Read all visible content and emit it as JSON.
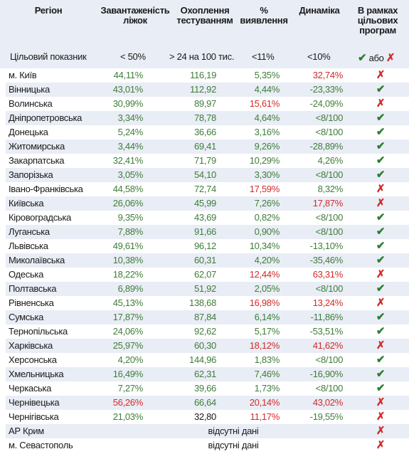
{
  "header": {
    "region": [
      "Регіон"
    ],
    "beds": [
      "Завантаженість",
      "ліжок"
    ],
    "testing": [
      "Охоплення",
      "тестуванням"
    ],
    "detection": [
      "%",
      "виявлення"
    ],
    "dynamics": [
      "Динаміка"
    ],
    "programs": [
      "В рамках",
      "цільових",
      "програм"
    ]
  },
  "targets": {
    "label": "Цільовий показник",
    "beds": "< 50%",
    "testing": "> 24 на 100 тис.",
    "detection": "<11%",
    "dynamics": "<10%",
    "legend_or": "або"
  },
  "colors": {
    "green": "#3f7d3a",
    "red": "#d22b2b",
    "band": "#e9edf5"
  },
  "rows": [
    {
      "region": "м. Київ",
      "beds": "44,11%",
      "bc": "g",
      "test": "116,19",
      "tc": "g",
      "det": "5,35%",
      "dc": "g",
      "dyn": "32,74%",
      "yc": "r",
      "ok": false
    },
    {
      "region": "Вінницька",
      "beds": "43,01%",
      "bc": "g",
      "test": "112,92",
      "tc": "g",
      "det": "4,44%",
      "dc": "g",
      "dyn": "-23,33%",
      "yc": "g",
      "ok": true
    },
    {
      "region": "Волинська",
      "beds": "30,99%",
      "bc": "g",
      "test": "89,97",
      "tc": "g",
      "det": "15,61%",
      "dc": "r",
      "dyn": "-24,09%",
      "yc": "g",
      "ok": false
    },
    {
      "region": "Дніпропетровська",
      "beds": "3,34%",
      "bc": "g",
      "test": "78,78",
      "tc": "g",
      "det": "4,64%",
      "dc": "g",
      "dyn": "<8/100",
      "yc": "g",
      "ok": true
    },
    {
      "region": "Донецька",
      "beds": "5,24%",
      "bc": "g",
      "test": "36,66",
      "tc": "g",
      "det": "3,16%",
      "dc": "g",
      "dyn": "<8/100",
      "yc": "g",
      "ok": true
    },
    {
      "region": "Житомирська",
      "beds": "3,44%",
      "bc": "g",
      "test": "69,41",
      "tc": "g",
      "det": "9,26%",
      "dc": "g",
      "dyn": "-28,89%",
      "yc": "g",
      "ok": true
    },
    {
      "region": "Закарпатська",
      "beds": "32,41%",
      "bc": "g",
      "test": "71,79",
      "tc": "g",
      "det": "10,29%",
      "dc": "g",
      "dyn": "4,26%",
      "yc": "g",
      "ok": true
    },
    {
      "region": "Запорізька",
      "beds": "3,05%",
      "bc": "g",
      "test": "54,10",
      "tc": "g",
      "det": "3,30%",
      "dc": "g",
      "dyn": "<8/100",
      "yc": "g",
      "ok": true
    },
    {
      "region": "Івано-Франківська",
      "beds": "44,58%",
      "bc": "g",
      "test": "72,74",
      "tc": "g",
      "det": "17,59%",
      "dc": "r",
      "dyn": "8,32%",
      "yc": "g",
      "ok": false
    },
    {
      "region": "Київська",
      "beds": "26,06%",
      "bc": "g",
      "test": "45,99",
      "tc": "g",
      "det": "7,26%",
      "dc": "g",
      "dyn": "17,87%",
      "yc": "r",
      "ok": false
    },
    {
      "region": "Кіровоградська",
      "beds": "9,35%",
      "bc": "g",
      "test": "43,69",
      "tc": "g",
      "det": "0,82%",
      "dc": "g",
      "dyn": "<8/100",
      "yc": "g",
      "ok": true
    },
    {
      "region": "Луганська",
      "beds": "7,88%",
      "bc": "g",
      "test": "91,66",
      "tc": "g",
      "det": "0,90%",
      "dc": "g",
      "dyn": "<8/100",
      "yc": "g",
      "ok": true
    },
    {
      "region": "Львівська",
      "beds": "49,61%",
      "bc": "g",
      "test": "96,12",
      "tc": "g",
      "det": "10,34%",
      "dc": "g",
      "dyn": "-13,10%",
      "yc": "g",
      "ok": true
    },
    {
      "region": "Миколаївська",
      "beds": "10,38%",
      "bc": "g",
      "test": "60,31",
      "tc": "g",
      "det": "4,20%",
      "dc": "g",
      "dyn": "-35,46%",
      "yc": "g",
      "ok": true
    },
    {
      "region": "Одеська",
      "beds": "18,22%",
      "bc": "g",
      "test": "62,07",
      "tc": "g",
      "det": "12,44%",
      "dc": "r",
      "dyn": "63,31%",
      "yc": "r",
      "ok": false
    },
    {
      "region": "Полтавська",
      "beds": "6,89%",
      "bc": "g",
      "test": "51,92",
      "tc": "g",
      "det": "2,05%",
      "dc": "g",
      "dyn": "<8/100",
      "yc": "g",
      "ok": true
    },
    {
      "region": "Рівненська",
      "beds": "45,13%",
      "bc": "g",
      "test": "138,68",
      "tc": "g",
      "det": "16,98%",
      "dc": "r",
      "dyn": "13,24%",
      "yc": "r",
      "ok": false
    },
    {
      "region": "Сумська",
      "beds": "17,87%",
      "bc": "g",
      "test": "87,84",
      "tc": "g",
      "det": "6,14%",
      "dc": "g",
      "dyn": "-11,86%",
      "yc": "g",
      "ok": true
    },
    {
      "region": "Тернопільська",
      "beds": "24,06%",
      "bc": "g",
      "test": "92,62",
      "tc": "g",
      "det": "5,17%",
      "dc": "g",
      "dyn": "-53,51%",
      "yc": "g",
      "ok": true
    },
    {
      "region": "Харківська",
      "beds": "25,97%",
      "bc": "g",
      "test": "60,30",
      "tc": "g",
      "det": "18,12%",
      "dc": "r",
      "dyn": "41,62%",
      "yc": "r",
      "ok": false
    },
    {
      "region": "Херсонська",
      "beds": "4,20%",
      "bc": "g",
      "test": "144,96",
      "tc": "g",
      "det": "1,83%",
      "dc": "g",
      "dyn": "<8/100",
      "yc": "g",
      "ok": true
    },
    {
      "region": "Хмельницька",
      "beds": "16,49%",
      "bc": "g",
      "test": "62,31",
      "tc": "g",
      "det": "7,46%",
      "dc": "g",
      "dyn": "-16,90%",
      "yc": "g",
      "ok": true
    },
    {
      "region": "Черкаська",
      "beds": "7,27%",
      "bc": "g",
      "test": "39,66",
      "tc": "g",
      "det": "1,73%",
      "dc": "g",
      "dyn": "<8/100",
      "yc": "g",
      "ok": true
    },
    {
      "region": "Чернівецька",
      "beds": "56,26%",
      "bc": "r",
      "test": "66,64",
      "tc": "g",
      "det": "20,14%",
      "dc": "r",
      "dyn": "43,02%",
      "yc": "r",
      "ok": false
    },
    {
      "region": "Чернігівська",
      "beds": "21,03%",
      "bc": "g",
      "test": "32,80",
      "tc": "k",
      "det": "11,17%",
      "dc": "r",
      "dyn": "-19,55%",
      "yc": "g",
      "ok": false
    },
    {
      "region": "АР Крим",
      "nodata": "відсутні дані",
      "ok": false
    },
    {
      "region": "м. Севастополь",
      "nodata": "відсутні дані",
      "ok": false
    }
  ]
}
